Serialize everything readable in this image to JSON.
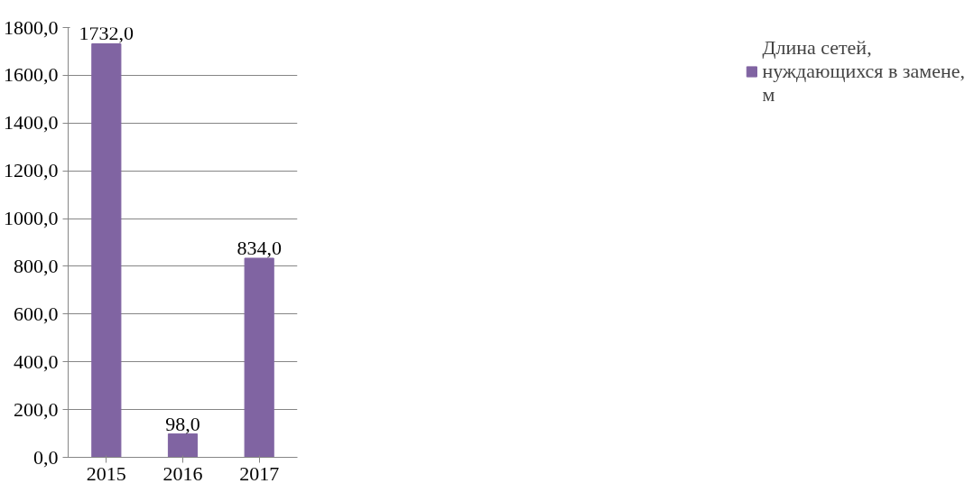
{
  "chart_data": {
    "type": "bar",
    "categories": [
      "2015",
      "2016",
      "2017"
    ],
    "series": [
      {
        "name": "Длина сетей, нуждающихся в замене, м",
        "color": "#8064a2",
        "values": [
          1732.0,
          98.0,
          834.0
        ],
        "value_labels": [
          "1732,0",
          "98,0",
          "834,0"
        ]
      }
    ],
    "ylim": [
      0,
      1800
    ],
    "yticks": [
      {
        "value": 0,
        "label": "0,0"
      },
      {
        "value": 200,
        "label": "200,0"
      },
      {
        "value": 400,
        "label": "400,0"
      },
      {
        "value": 600,
        "label": "600,0"
      },
      {
        "value": 800,
        "label": "800,0"
      },
      {
        "value": 1000,
        "label": "1000,0"
      },
      {
        "value": 1200,
        "label": "1200,0"
      },
      {
        "value": 1400,
        "label": "1400,0"
      },
      {
        "value": 1600,
        "label": "1600,0"
      },
      {
        "value": 1800,
        "label": "1800,0"
      }
    ],
    "grid": "y",
    "legend": "right"
  }
}
